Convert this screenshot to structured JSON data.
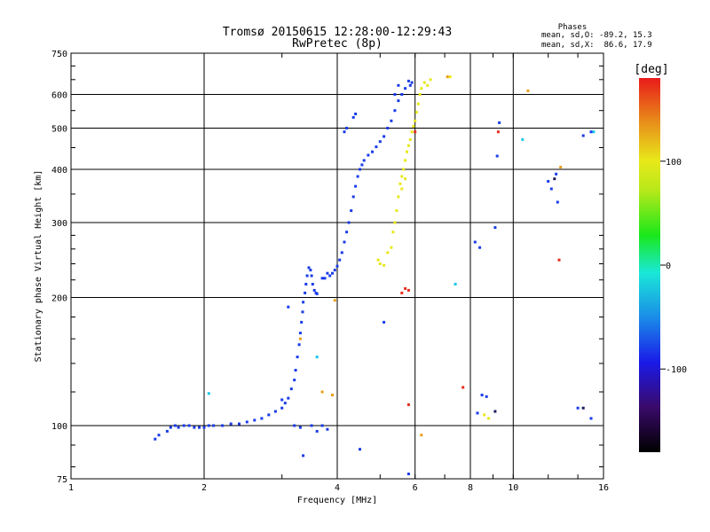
{
  "chart_data": {
    "type": "scatter",
    "title": "Tromsø 20150615 12:28:00-12:29:43",
    "subtitle": "RwPretec (8p)",
    "xlabel": "Frequency [MHz]",
    "ylabel": "Stationary phase Virtual Height [km]",
    "x_scale": "log",
    "y_scale": "log",
    "xlim": [
      1,
      16
    ],
    "ylim": [
      75,
      750
    ],
    "x_ticks": [
      1,
      2,
      4,
      6,
      8,
      10,
      16
    ],
    "x_tick_labels": [
      "1",
      "2",
      "4",
      "6",
      "8",
      "10",
      "16"
    ],
    "x_grid": [
      2,
      4,
      6,
      8,
      10
    ],
    "y_ticks": [
      75,
      100,
      200,
      300,
      400,
      500,
      600,
      750
    ],
    "y_tick_labels": [
      "75",
      "100",
      "200",
      "300",
      "400",
      "500",
      "600",
      "750"
    ],
    "y_grid": [
      100,
      200,
      300,
      400,
      500,
      600
    ],
    "grid": true,
    "annotation": {
      "title": "Phases",
      "line1": "mean, sd,O: -89.2, 15.3",
      "line2": "mean, sd,X:  86.6, 17.9"
    },
    "colorbar": {
      "label": "[deg]",
      "range": [
        -180,
        180
      ],
      "ticks": [
        100,
        0,
        -100
      ],
      "tick_labels": [
        "100",
        "0",
        "-100"
      ]
    },
    "series": [
      {
        "name": "O",
        "color": "#1a3ce8",
        "points": [
          [
            1.55,
            93
          ],
          [
            1.58,
            95
          ],
          [
            1.65,
            97
          ],
          [
            1.68,
            99
          ],
          [
            1.72,
            100
          ],
          [
            1.75,
            99
          ],
          [
            1.8,
            100
          ],
          [
            1.85,
            100
          ],
          [
            1.9,
            99
          ],
          [
            1.95,
            99
          ],
          [
            2.0,
            99
          ],
          [
            2.05,
            100
          ],
          [
            2.1,
            100
          ],
          [
            2.2,
            100
          ],
          [
            2.3,
            101
          ],
          [
            2.4,
            101
          ],
          [
            2.5,
            102
          ],
          [
            2.6,
            103
          ],
          [
            2.7,
            104
          ],
          [
            2.8,
            106
          ],
          [
            2.9,
            108
          ],
          [
            3.0,
            110
          ],
          [
            3.05,
            113
          ],
          [
            3.1,
            116
          ],
          [
            3.15,
            122
          ],
          [
            3.2,
            128
          ],
          [
            3.22,
            135
          ],
          [
            3.25,
            145
          ],
          [
            3.28,
            155
          ],
          [
            3.3,
            165
          ],
          [
            3.32,
            175
          ],
          [
            3.34,
            185
          ],
          [
            3.35,
            195
          ],
          [
            3.38,
            205
          ],
          [
            3.4,
            215
          ],
          [
            3.42,
            225
          ],
          [
            3.45,
            235
          ],
          [
            3.48,
            232
          ],
          [
            3.5,
            225
          ],
          [
            3.52,
            215
          ],
          [
            3.55,
            208
          ],
          [
            3.58,
            205
          ],
          [
            3.6,
            204
          ],
          [
            3.7,
            222
          ],
          [
            3.75,
            222
          ],
          [
            3.8,
            228
          ],
          [
            3.85,
            225
          ],
          [
            3.9,
            228
          ],
          [
            3.95,
            232
          ],
          [
            4.0,
            237
          ],
          [
            4.05,
            245
          ],
          [
            4.1,
            255
          ],
          [
            4.15,
            270
          ],
          [
            4.2,
            285
          ],
          [
            4.25,
            300
          ],
          [
            4.3,
            320
          ],
          [
            4.35,
            345
          ],
          [
            4.4,
            365
          ],
          [
            4.45,
            385
          ],
          [
            4.5,
            400
          ],
          [
            4.55,
            410
          ],
          [
            4.6,
            420
          ],
          [
            4.7,
            432
          ],
          [
            4.8,
            440
          ],
          [
            4.9,
            452
          ],
          [
            5.0,
            465
          ],
          [
            5.1,
            478
          ],
          [
            5.2,
            500
          ],
          [
            5.3,
            520
          ],
          [
            5.4,
            550
          ],
          [
            5.5,
            580
          ],
          [
            5.6,
            600
          ],
          [
            5.7,
            620
          ],
          [
            5.8,
            645
          ],
          [
            5.85,
            630
          ],
          [
            5.9,
            640
          ],
          [
            4.15,
            490
          ],
          [
            4.2,
            500
          ],
          [
            4.35,
            530
          ],
          [
            4.4,
            540
          ],
          [
            5.4,
            600
          ],
          [
            5.5,
            630
          ],
          [
            3.1,
            190
          ],
          [
            3.0,
            115
          ],
          [
            3.7,
            100
          ],
          [
            3.8,
            98
          ],
          [
            4.5,
            88
          ],
          [
            3.2,
            100
          ],
          [
            3.3,
            99
          ],
          [
            3.5,
            100
          ],
          [
            3.6,
            97
          ],
          [
            3.35,
            85
          ],
          [
            8.2,
            270
          ],
          [
            8.4,
            262
          ],
          [
            8.5,
            118
          ],
          [
            8.7,
            117
          ],
          [
            8.3,
            107
          ],
          [
            9.3,
            515
          ],
          [
            9.2,
            430
          ],
          [
            9.1,
            292
          ],
          [
            12.0,
            375
          ],
          [
            12.2,
            360
          ],
          [
            12.6,
            335
          ],
          [
            12.5,
            390
          ],
          [
            14.4,
            480
          ],
          [
            15.0,
            490
          ],
          [
            14.0,
            110
          ],
          [
            15.0,
            104
          ],
          [
            5.1,
            175
          ],
          [
            5.8,
            77
          ]
        ]
      },
      {
        "name": "X",
        "color": "#e8e81a",
        "points": [
          [
            4.95,
            245
          ],
          [
            5.0,
            240
          ],
          [
            5.1,
            238
          ],
          [
            5.2,
            255
          ],
          [
            5.3,
            262
          ],
          [
            5.35,
            285
          ],
          [
            5.4,
            300
          ],
          [
            5.45,
            320
          ],
          [
            5.5,
            345
          ],
          [
            5.55,
            370
          ],
          [
            5.6,
            385
          ],
          [
            5.65,
            400
          ],
          [
            5.7,
            420
          ],
          [
            5.75,
            440
          ],
          [
            5.8,
            455
          ],
          [
            5.85,
            470
          ],
          [
            5.9,
            490
          ],
          [
            5.95,
            505
          ],
          [
            6.0,
            520
          ],
          [
            6.05,
            545
          ],
          [
            6.1,
            570
          ],
          [
            6.15,
            600
          ],
          [
            6.2,
            620
          ],
          [
            6.3,
            640
          ],
          [
            6.4,
            630
          ],
          [
            6.5,
            650
          ],
          [
            5.6,
            360
          ],
          [
            5.7,
            380
          ],
          [
            8.6,
            106
          ],
          [
            8.8,
            104
          ],
          [
            7.2,
            660
          ]
        ]
      },
      {
        "name": "",
        "color": "#e82a1a",
        "points": [
          [
            5.7,
            210
          ],
          [
            5.8,
            208
          ],
          [
            5.6,
            205
          ],
          [
            6.0,
            490
          ],
          [
            9.25,
            490
          ],
          [
            12.7,
            245
          ],
          [
            7.7,
            123
          ],
          [
            5.8,
            112
          ]
        ]
      },
      {
        "name": "",
        "color": "#1ac8e8",
        "points": [
          [
            2.05,
            119
          ],
          [
            7.4,
            215
          ],
          [
            3.6,
            145
          ],
          [
            10.5,
            470
          ],
          [
            15.2,
            490
          ]
        ]
      },
      {
        "name": "",
        "color": "#e8a01a",
        "points": [
          [
            3.95,
            197
          ],
          [
            3.7,
            120
          ],
          [
            3.3,
            160
          ],
          [
            6.2,
            95
          ],
          [
            12.8,
            405
          ],
          [
            10.8,
            612
          ],
          [
            7.1,
            660
          ],
          [
            3.9,
            118
          ]
        ]
      },
      {
        "name": "",
        "color": "#1a1a5a",
        "points": [
          [
            9.1,
            108
          ],
          [
            14.4,
            110
          ],
          [
            12.4,
            380
          ]
        ]
      }
    ]
  }
}
